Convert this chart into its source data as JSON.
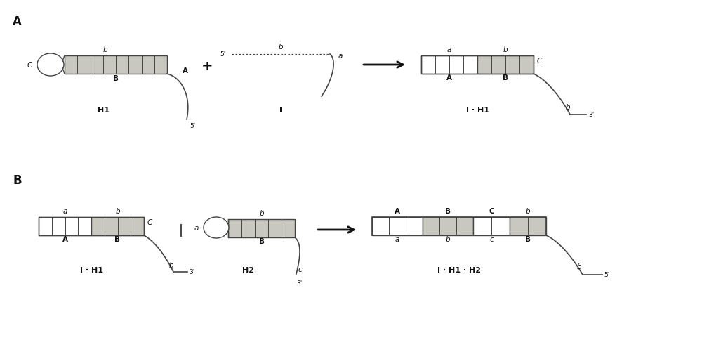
{
  "bg_color": "#ffffff",
  "line_color": "#444444",
  "fill_color": "#c8c8c0",
  "fill_light": "#e0e0d8",
  "text_color": "#111111",
  "title_A": "A",
  "title_B": "B",
  "label_H1": "H1",
  "label_I": "I",
  "label_IH1": "I · H1",
  "label_H2": "H2",
  "label_IH1H2": "I · H1 · H2",
  "fs_label": 7.5,
  "fs_section": 9,
  "fs_name": 8
}
